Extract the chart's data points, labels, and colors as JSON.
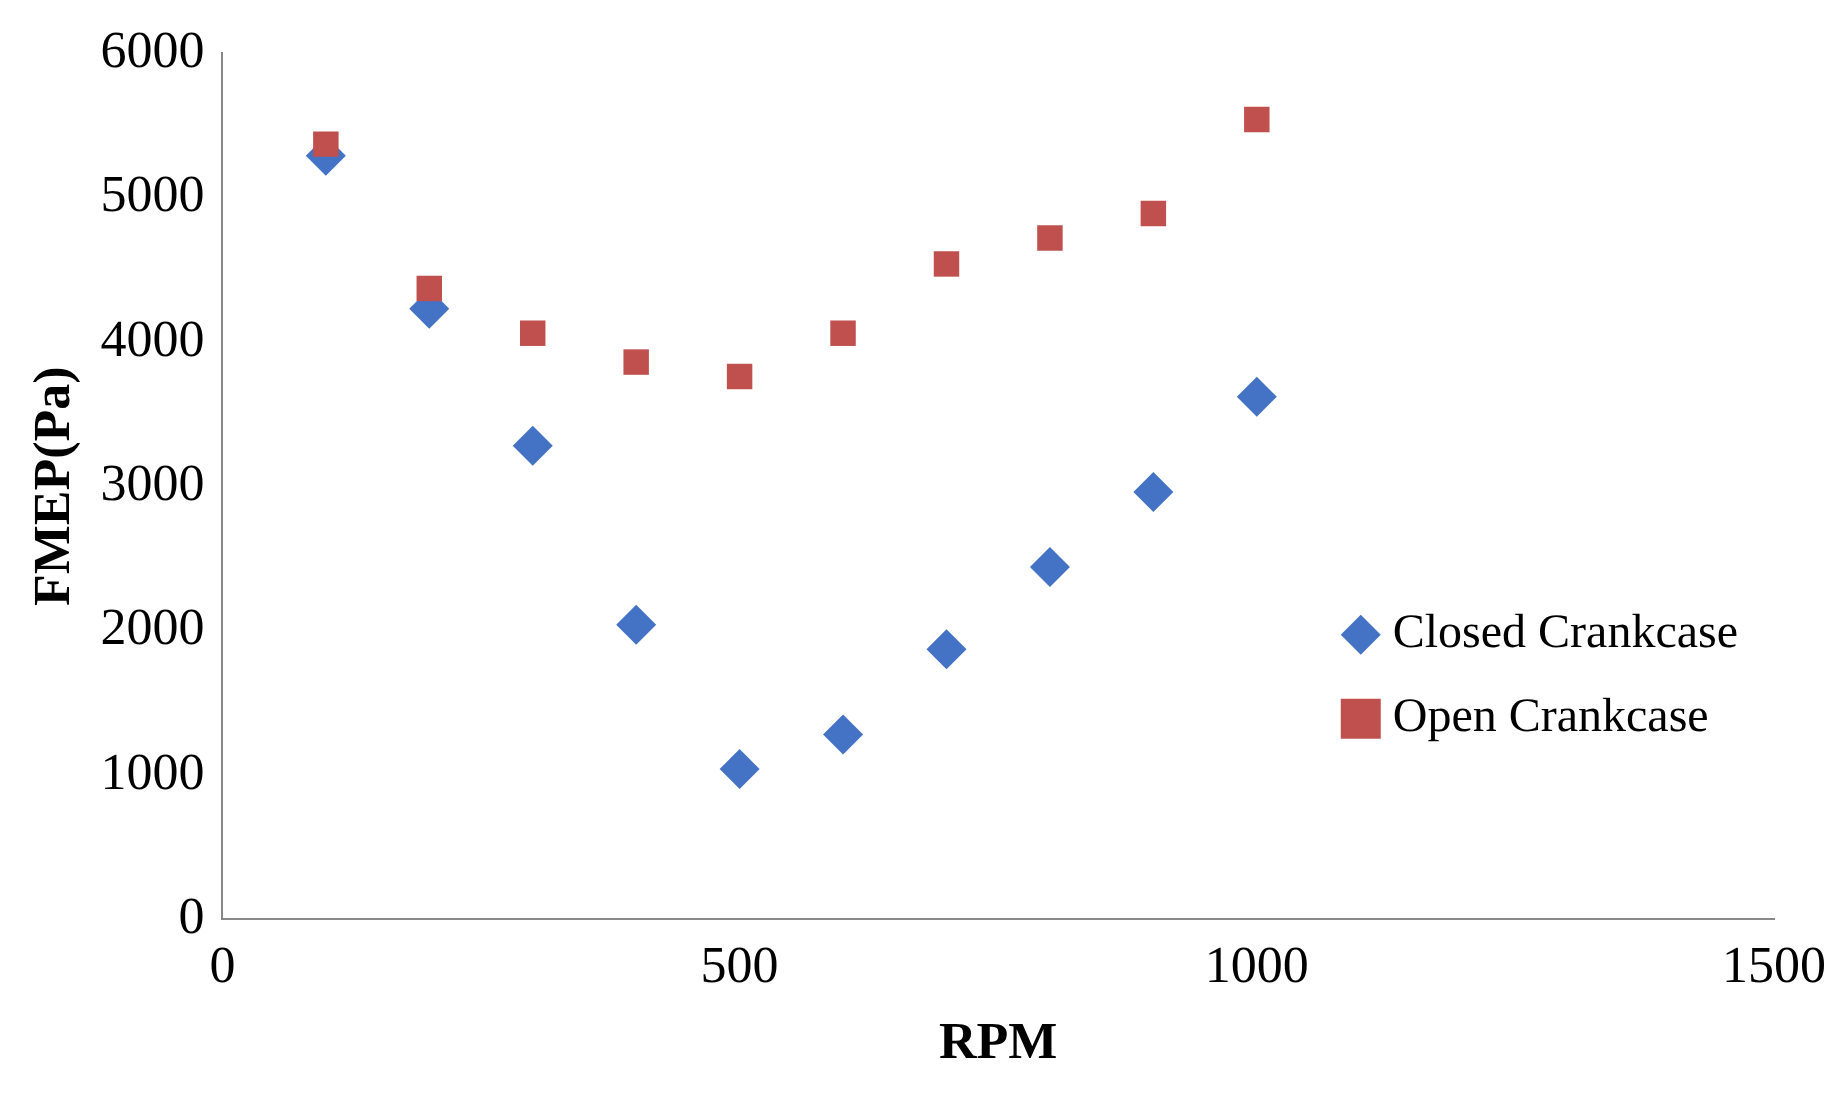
{
  "chart_data": {
    "type": "scatter",
    "xlabel": "RPM",
    "ylabel": "FMEP(Pa)",
    "x": [
      100,
      200,
      300,
      400,
      500,
      600,
      700,
      800,
      900,
      1000
    ],
    "series": [
      {
        "name": "Closed Crankcase",
        "color": "#4472c4",
        "marker": "diamond",
        "values": [
          5290,
          4230,
          3280,
          2040,
          1040,
          1280,
          1870,
          2440,
          2960,
          3620
        ]
      },
      {
        "name": "Open Crankcase",
        "color": "#c0504d",
        "marker": "square",
        "values": [
          5370,
          4370,
          4060,
          3860,
          3760,
          4060,
          4540,
          4720,
          4890,
          5540
        ]
      }
    ],
    "xlim": [
      0,
      1500
    ],
    "xticks": [
      0,
      500,
      1000,
      1500
    ],
    "ylim": [
      0,
      6000
    ],
    "yticks": [
      0,
      1000,
      2000,
      3000,
      4000,
      5000,
      6000
    ],
    "grid": false,
    "legend": "right"
  }
}
